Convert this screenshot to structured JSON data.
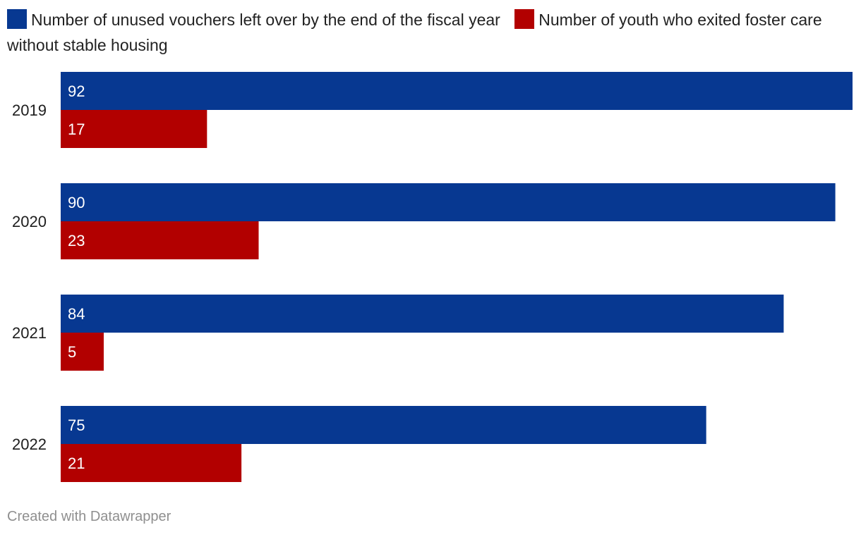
{
  "colors": {
    "series_1": "#073891",
    "series_2": "#b20000",
    "bar_label": "#ffffff",
    "category_label": "#1d1d1d"
  },
  "legend": [
    {
      "label": "Number of unused vouchers left over by the end of the fiscal year"
    },
    {
      "label": "Number of youth who exited foster care without stable housing"
    }
  ],
  "chart_data": {
    "type": "bar",
    "orientation": "horizontal",
    "categories": [
      "2019",
      "2020",
      "2021",
      "2022"
    ],
    "series": [
      {
        "name": "Number of unused vouchers left over by the end of the fiscal year",
        "values": [
          92,
          90,
          84,
          75
        ]
      },
      {
        "name": "Number of youth who exited foster care without stable housing",
        "values": [
          17,
          23,
          5,
          21
        ]
      }
    ],
    "xlim": [
      0,
      92
    ],
    "grid": false,
    "legend_position": "top-left",
    "data_labels": "inside-start"
  },
  "footer": {
    "credit": "Created with Datawrapper"
  }
}
